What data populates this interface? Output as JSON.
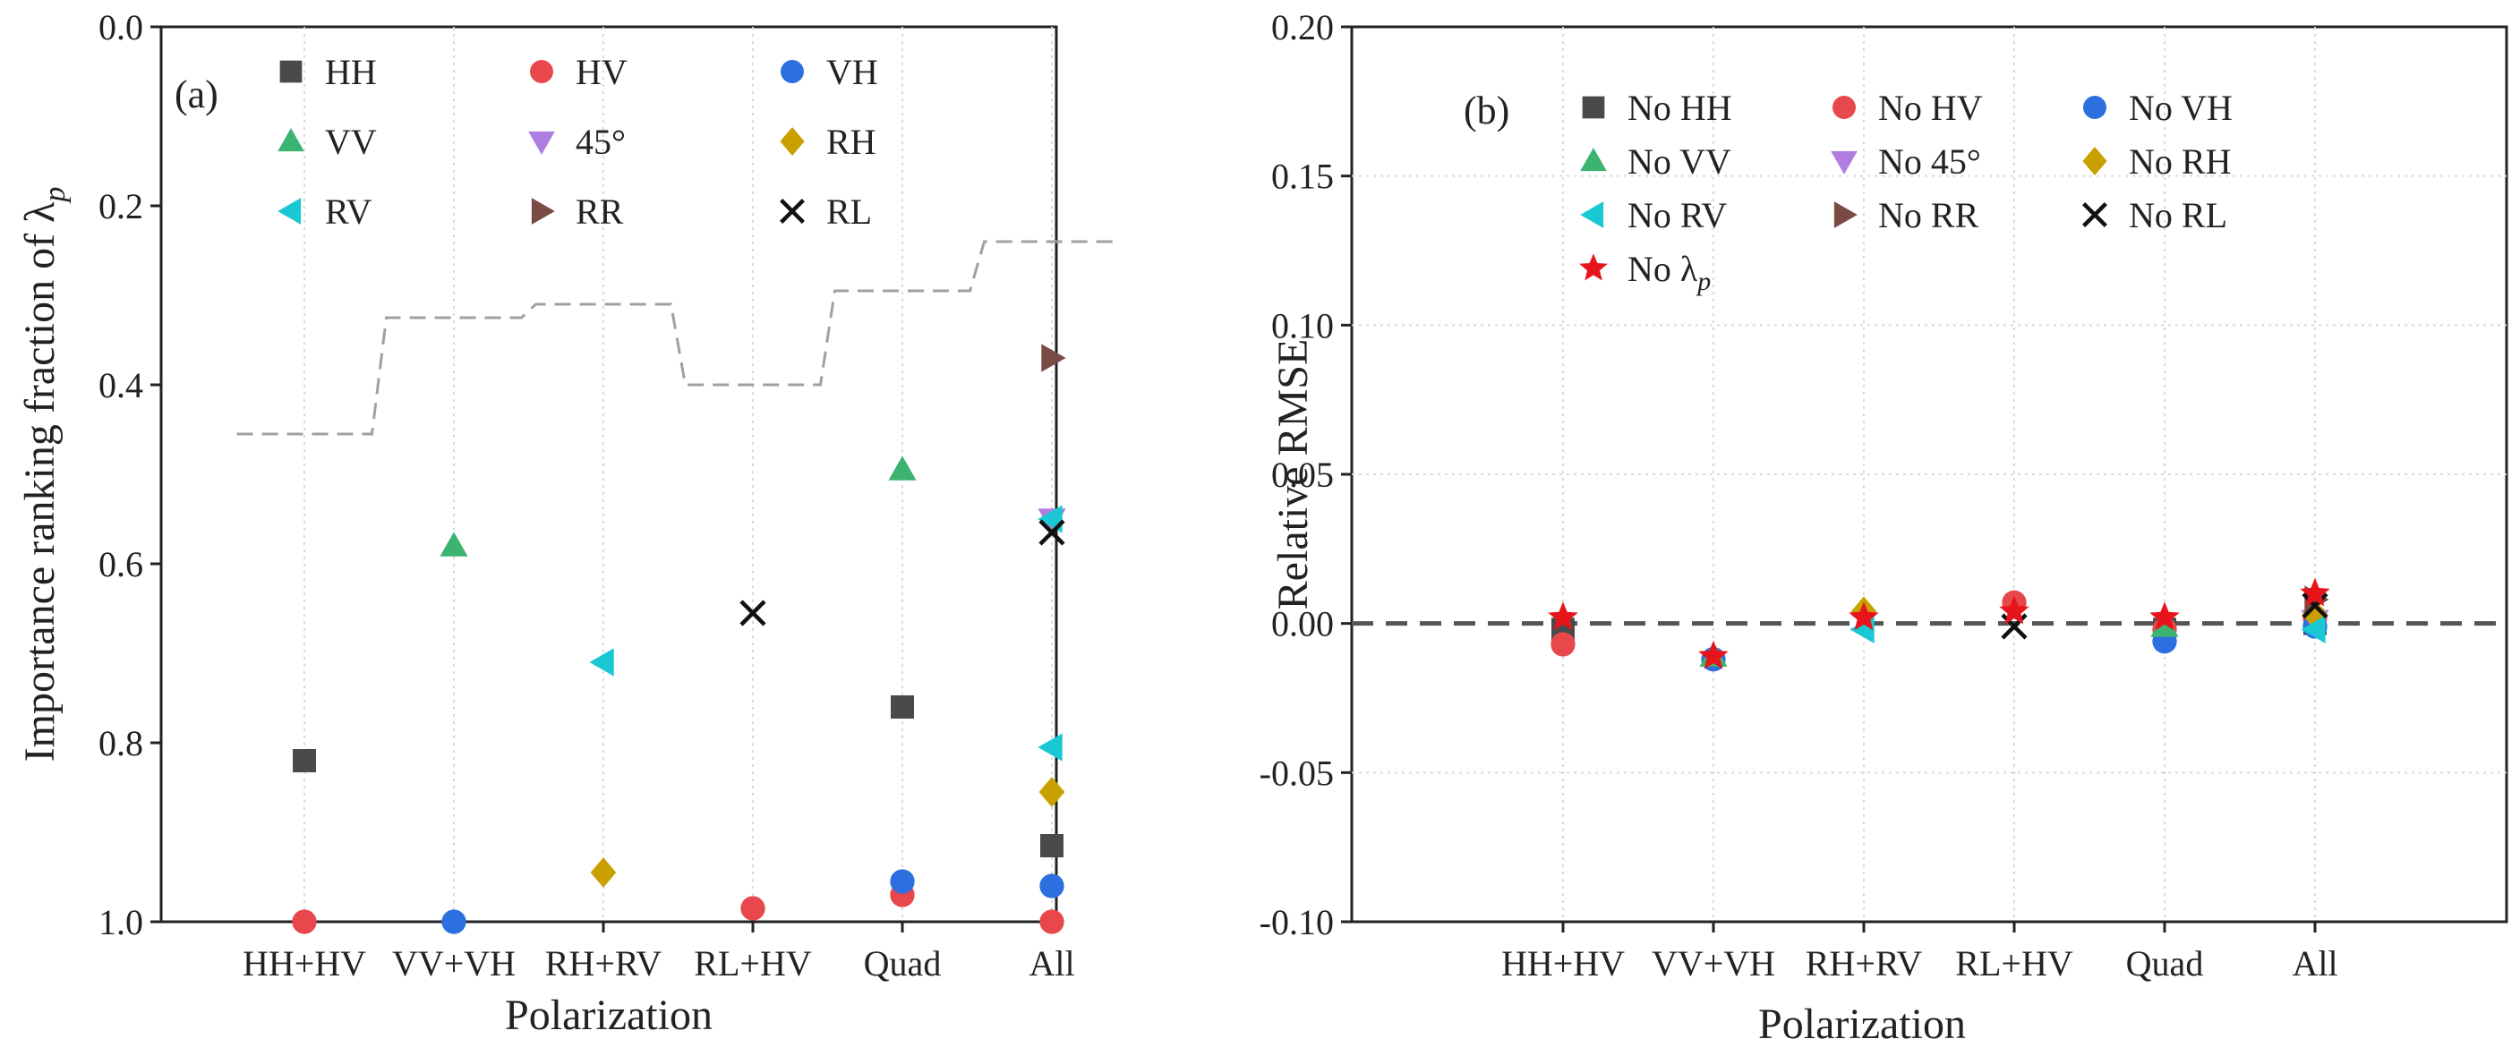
{
  "chart_data": [
    {
      "id": "a",
      "type": "scatter",
      "panel_label": "(a)",
      "title": "",
      "xlabel": "Polarization",
      "ylabel": "Importance ranking fraction of λ",
      "ylabel_subscript": "p",
      "categories": [
        "HH+HV",
        "VV+VH",
        "RH+RV",
        "RL+HV",
        "Quad",
        "All"
      ],
      "ylim": [
        0.0,
        1.0
      ],
      "y_inverted": true,
      "yticks": [
        "0.0",
        "0.2",
        "0.4",
        "0.6",
        "0.8",
        "1.0"
      ],
      "grid": "vertical dotted",
      "legend_position": "top-left",
      "legend": [
        {
          "label": "HH",
          "marker": "square",
          "color": "#4a4a4a"
        },
        {
          "label": "HV",
          "marker": "circle",
          "color": "#e8474b"
        },
        {
          "label": "VH",
          "marker": "circle",
          "color": "#2b6fe0"
        },
        {
          "label": "VV",
          "marker": "triangle-up",
          "color": "#3cb371"
        },
        {
          "label": "45°",
          "marker": "triangle-down",
          "color": "#b07de0"
        },
        {
          "label": "RH",
          "marker": "diamond",
          "color": "#c9a000"
        },
        {
          "label": "RV",
          "marker": "triangle-left",
          "color": "#19c8d2"
        },
        {
          "label": "RR",
          "marker": "triangle-right",
          "color": "#7a4a44"
        },
        {
          "label": "RL",
          "marker": "x",
          "color": "#111111"
        }
      ],
      "series": [
        {
          "name": "HH",
          "points": [
            [
              "HH+HV",
              0.82
            ],
            [
              "Quad",
              0.76
            ],
            [
              "All",
              0.915
            ]
          ]
        },
        {
          "name": "HV",
          "points": [
            [
              "HH+HV",
              1.0
            ],
            [
              "RL+HV",
              0.985
            ],
            [
              "Quad",
              0.97
            ],
            [
              "All",
              1.0
            ]
          ]
        },
        {
          "name": "VH",
          "points": [
            [
              "VV+VH",
              1.0
            ],
            [
              "Quad",
              0.955
            ],
            [
              "All",
              0.96
            ]
          ]
        },
        {
          "name": "VV",
          "points": [
            [
              "VV+VH",
              0.58
            ],
            [
              "Quad",
              0.495
            ]
          ]
        },
        {
          "name": "45°",
          "points": [
            [
              "All",
              0.55
            ]
          ]
        },
        {
          "name": "RH",
          "points": [
            [
              "RH+RV",
              0.945
            ],
            [
              "All",
              0.855
            ]
          ]
        },
        {
          "name": "RV",
          "points": [
            [
              "RH+RV",
              0.71
            ],
            [
              "All",
              0.805
            ],
            [
              "All",
              0.55
            ]
          ]
        },
        {
          "name": "RR",
          "points": [
            [
              "All",
              0.37
            ]
          ]
        },
        {
          "name": "RL",
          "points": [
            [
              "RL+HV",
              0.655
            ],
            [
              "All",
              0.565
            ]
          ]
        }
      ],
      "threshold_line": {
        "style": "dashed step",
        "values": [
          0.455,
          0.325,
          0.31,
          0.4,
          0.295,
          0.24
        ]
      }
    },
    {
      "id": "b",
      "type": "scatter",
      "panel_label": "(b)",
      "title": "",
      "xlabel": "Polarization",
      "ylabel": "Relative RMSE",
      "categories": [
        "HH+HV",
        "VV+VH",
        "RH+RV",
        "RL+HV",
        "Quad",
        "All"
      ],
      "ylim": [
        -0.1,
        0.2
      ],
      "yticks": [
        "0.20",
        "0.15",
        "0.10",
        "0.05",
        "0.00",
        "-0.05",
        "-0.10"
      ],
      "grid": "vertical and horizontal dotted",
      "legend_position": "top-left",
      "legend": [
        {
          "label": "No HH",
          "marker": "square",
          "color": "#4a4a4a"
        },
        {
          "label": "No HV",
          "marker": "circle",
          "color": "#e8474b"
        },
        {
          "label": "No VH",
          "marker": "circle",
          "color": "#2b6fe0"
        },
        {
          "label": "No VV",
          "marker": "triangle-up",
          "color": "#3cb371"
        },
        {
          "label": "No 45°",
          "marker": "triangle-down",
          "color": "#b07de0"
        },
        {
          "label": "No RH",
          "marker": "diamond",
          "color": "#c9a000"
        },
        {
          "label": "No RV",
          "marker": "triangle-left",
          "color": "#19c8d2"
        },
        {
          "label": "No RR",
          "marker": "triangle-right",
          "color": "#7a4a44"
        },
        {
          "label": "No RL",
          "marker": "x",
          "color": "#111111"
        },
        {
          "label": "No λ",
          "label_subscript": "p",
          "marker": "star",
          "color": "#e8141c"
        }
      ],
      "reference_line": {
        "y": 0.0,
        "style": "dashed"
      },
      "series": [
        {
          "name": "No HH",
          "points": [
            [
              "HH+HV",
              -0.002
            ],
            [
              "Quad",
              -0.002
            ],
            [
              "All",
              0.0
            ]
          ]
        },
        {
          "name": "No HV",
          "points": [
            [
              "HH+HV",
              -0.007
            ],
            [
              "RL+HV",
              0.007
            ],
            [
              "Quad",
              -0.002
            ],
            [
              "All",
              0.002
            ]
          ]
        },
        {
          "name": "No VH",
          "points": [
            [
              "VV+VH",
              -0.012
            ],
            [
              "Quad",
              -0.006
            ],
            [
              "All",
              -0.001
            ]
          ]
        },
        {
          "name": "No VV",
          "points": [
            [
              "VV+VH",
              -0.011
            ],
            [
              "Quad",
              -0.001
            ]
          ]
        },
        {
          "name": "No 45°",
          "points": [
            [
              "All",
              0.001
            ]
          ]
        },
        {
          "name": "No RH",
          "points": [
            [
              "RH+RV",
              0.004
            ],
            [
              "All",
              0.003
            ]
          ]
        },
        {
          "name": "No RV",
          "points": [
            [
              "RH+RV",
              -0.002
            ],
            [
              "All",
              -0.002
            ]
          ]
        },
        {
          "name": "No RR",
          "points": [
            [
              "All",
              0.008
            ]
          ]
        },
        {
          "name": "No RL",
          "points": [
            [
              "RL+HV",
              -0.001
            ],
            [
              "All",
              0.006
            ]
          ]
        },
        {
          "name": "No λp",
          "points": [
            [
              "HH+HV",
              0.002
            ],
            [
              "VV+VH",
              -0.011
            ],
            [
              "RH+RV",
              0.002
            ],
            [
              "RL+HV",
              0.004
            ],
            [
              "Quad",
              0.002
            ],
            [
              "All",
              0.01
            ]
          ]
        }
      ]
    }
  ]
}
